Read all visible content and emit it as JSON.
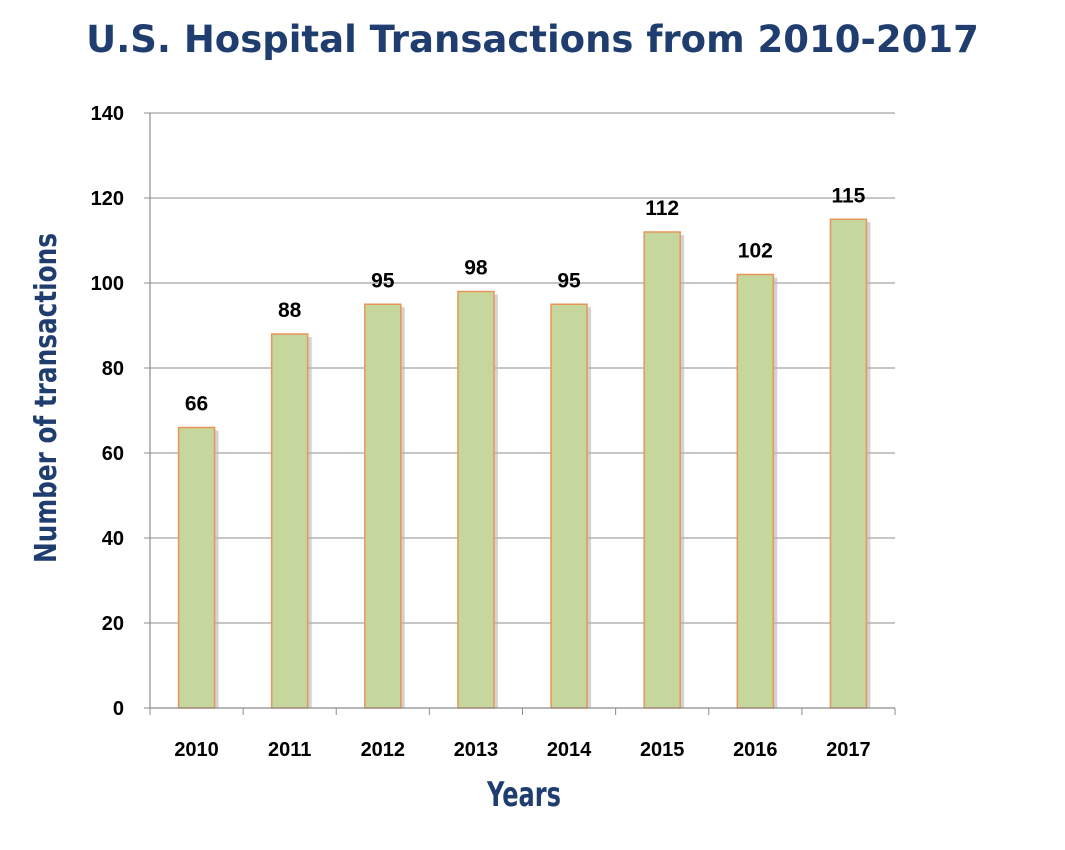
{
  "colors": {
    "title": "#1f3d6e",
    "axis_title": "#1f3d6e",
    "bar_fill": "#c5d79c",
    "bar_stroke": "#e8955a",
    "grid": "#8c8c8c",
    "bar_shadow": "#b5b5b5"
  },
  "chart_data": {
    "type": "bar",
    "title": "U.S. Hospital Transactions from 2010-2017",
    "xlabel": "Years",
    "ylabel": "Number of transactions",
    "categories": [
      "2010",
      "2011",
      "2012",
      "2013",
      "2014",
      "2015",
      "2016",
      "2017"
    ],
    "values": [
      66,
      88,
      95,
      98,
      95,
      112,
      102,
      115
    ],
    "ylim": [
      0,
      140
    ],
    "yticks": [
      0,
      20,
      40,
      60,
      80,
      100,
      120,
      140
    ],
    "data_labels": true,
    "grid": true,
    "legend": "none"
  }
}
